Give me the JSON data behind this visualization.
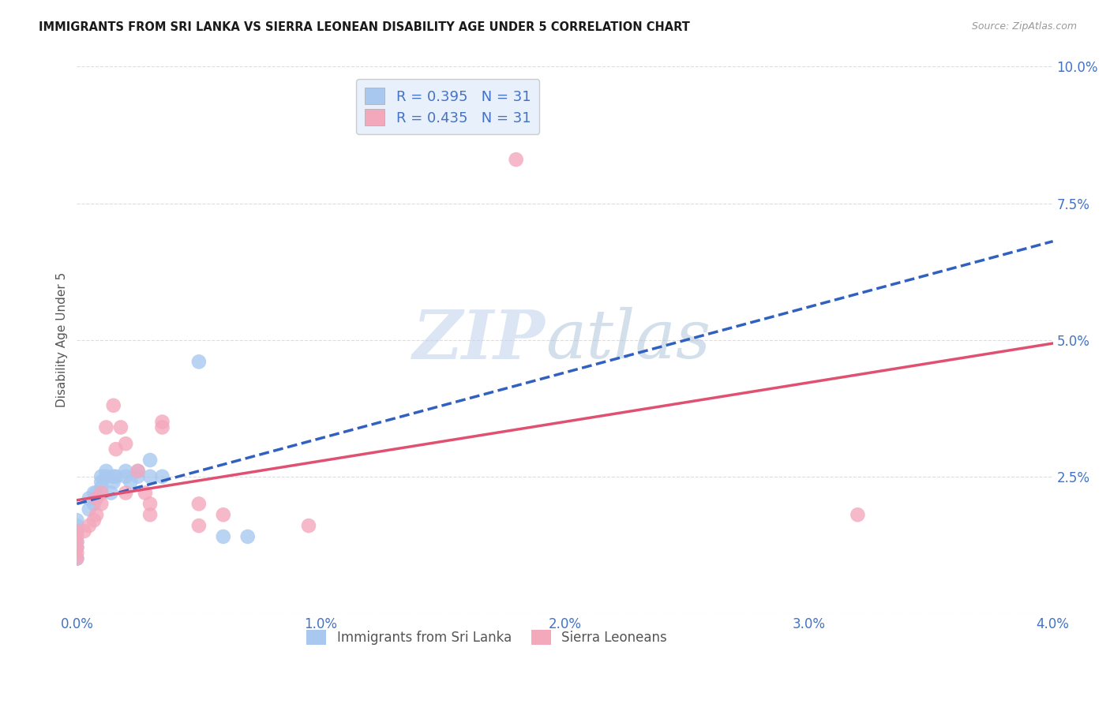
{
  "title": "IMMIGRANTS FROM SRI LANKA VS SIERRA LEONEAN DISABILITY AGE UNDER 5 CORRELATION CHART",
  "source": "Source: ZipAtlas.com",
  "ylabel": "Disability Age Under 5",
  "xlim": [
    0.0,
    0.04
  ],
  "ylim": [
    0.0,
    0.1
  ],
  "xticks": [
    0.0,
    0.01,
    0.02,
    0.03,
    0.04
  ],
  "xticklabels": [
    "0.0%",
    "1.0%",
    "2.0%",
    "3.0%",
    "4.0%"
  ],
  "yticks": [
    0.0,
    0.025,
    0.05,
    0.075,
    0.1
  ],
  "yticklabels": [
    "",
    "2.5%",
    "5.0%",
    "7.5%",
    "10.0%"
  ],
  "sri_lanka_R": 0.395,
  "sri_lanka_N": 31,
  "sierra_leone_R": 0.435,
  "sierra_leone_N": 31,
  "sri_lanka_color": "#a8c8f0",
  "sierra_leone_color": "#f4a8bc",
  "sri_lanka_line_color": "#3060c0",
  "sierra_leone_line_color": "#e05070",
  "legend_box_color": "#e8f0fc",
  "watermark_zip_color": "#c8d8f0",
  "watermark_atlas_color": "#b0c8e0",
  "background_color": "#ffffff",
  "grid_color": "#dddddd",
  "tick_color": "#4472c4",
  "sri_lanka_x": [
    0.0,
    0.0,
    0.0,
    0.0,
    0.0,
    0.0,
    0.0005,
    0.0005,
    0.0007,
    0.0007,
    0.0008,
    0.001,
    0.001,
    0.001,
    0.0012,
    0.0012,
    0.0014,
    0.0015,
    0.0015,
    0.0016,
    0.002,
    0.002,
    0.0022,
    0.0025,
    0.0025,
    0.003,
    0.003,
    0.0035,
    0.005,
    0.006,
    0.007
  ],
  "sri_lanka_y": [
    0.01,
    0.012,
    0.013,
    0.015,
    0.016,
    0.017,
    0.019,
    0.021,
    0.02,
    0.022,
    0.022,
    0.023,
    0.024,
    0.025,
    0.025,
    0.026,
    0.022,
    0.024,
    0.025,
    0.025,
    0.025,
    0.026,
    0.024,
    0.025,
    0.026,
    0.025,
    0.028,
    0.025,
    0.046,
    0.014,
    0.014
  ],
  "sierra_leone_x": [
    0.0,
    0.0,
    0.0,
    0.0,
    0.0,
    0.0,
    0.0003,
    0.0005,
    0.0007,
    0.0008,
    0.0008,
    0.001,
    0.001,
    0.0012,
    0.0015,
    0.0016,
    0.0018,
    0.002,
    0.002,
    0.0025,
    0.0028,
    0.003,
    0.0035,
    0.0035,
    0.005,
    0.006,
    0.0095,
    0.018,
    0.003,
    0.005,
    0.032
  ],
  "sierra_leone_y": [
    0.01,
    0.011,
    0.012,
    0.013,
    0.014,
    0.015,
    0.015,
    0.016,
    0.017,
    0.018,
    0.021,
    0.02,
    0.022,
    0.034,
    0.038,
    0.03,
    0.034,
    0.031,
    0.022,
    0.026,
    0.022,
    0.02,
    0.034,
    0.035,
    0.02,
    0.018,
    0.016,
    0.083,
    0.018,
    0.016,
    0.018
  ],
  "legend_label_color": "#4472c4"
}
